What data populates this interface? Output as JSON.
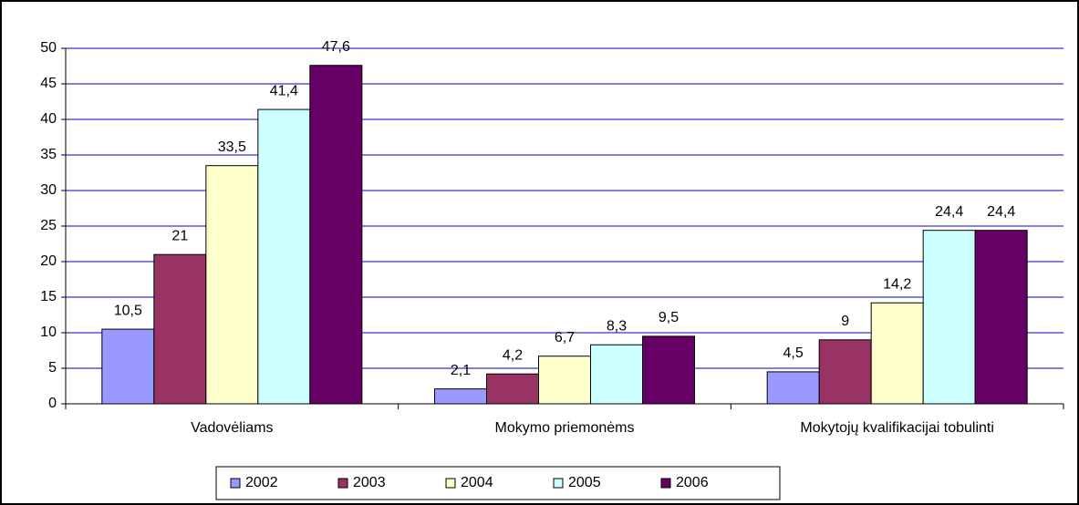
{
  "chart_data": {
    "type": "bar",
    "categories": [
      "Vadovėliams",
      "Mokymo priemonėms",
      "Mokytojų kvalifikacijai tobulinti"
    ],
    "series": [
      {
        "name": "2002",
        "color": "#9999ff",
        "values": [
          10.5,
          2.1,
          4.5
        ],
        "value_labels": [
          "10,5",
          "2,1",
          "4,5"
        ]
      },
      {
        "name": "2003",
        "color": "#993366",
        "values": [
          21,
          4.2,
          9
        ],
        "value_labels": [
          "21",
          "4,2",
          "9"
        ]
      },
      {
        "name": "2004",
        "color": "#ffffcc",
        "values": [
          33.5,
          6.7,
          14.2
        ],
        "value_labels": [
          "33,5",
          "6,7",
          "14,2"
        ]
      },
      {
        "name": "2005",
        "color": "#ccffff",
        "values": [
          41.4,
          8.3,
          24.4
        ],
        "value_labels": [
          "41,4",
          "8,3",
          "24,4"
        ]
      },
      {
        "name": "2006",
        "color": "#660066",
        "values": [
          47.6,
          9.5,
          24.4
        ],
        "value_labels": [
          "47,6",
          "9,5",
          "24,4"
        ]
      }
    ],
    "ylim": [
      0,
      50
    ],
    "yticks": [
      0,
      5,
      10,
      15,
      20,
      25,
      30,
      35,
      40,
      45,
      50
    ],
    "grid": true,
    "grid_color": "#0000cc",
    "legend": "bottom"
  }
}
